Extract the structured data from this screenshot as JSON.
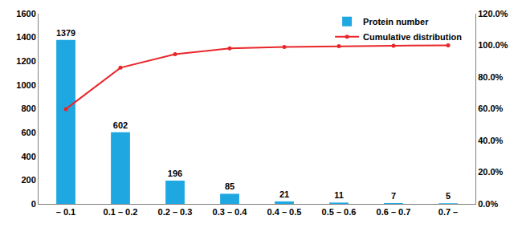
{
  "chart_data": {
    "type": "bar",
    "categories": [
      "– 0.1",
      "0.1 – 0.2",
      "0.2 – 0.3",
      "0.3 – 0.4",
      "0.4 – 0.5",
      "0.5 – 0.6",
      "0.6 – 0.7",
      "0.7 –"
    ],
    "series": [
      {
        "name": "Protein number",
        "type": "bar",
        "color": "#1fa7e2",
        "data_labels": true,
        "values": [
          1379,
          602,
          196,
          85,
          21,
          11,
          7,
          5
        ]
      },
      {
        "name": "Cumulative distribution",
        "type": "line",
        "axis": "y2",
        "color": "#e8262a",
        "marker": "circle",
        "line_style": "solid",
        "values": [
          59.8,
          85.9,
          94.4,
          98.1,
          99.0,
          99.5,
          99.8,
          100.0
        ]
      }
    ],
    "ylim": [
      0,
      1600
    ],
    "yticks": [
      0,
      200,
      400,
      600,
      800,
      1000,
      1200,
      1400,
      1600
    ],
    "y2lim": [
      0,
      120
    ],
    "y2ticks": [
      {
        "value": 0,
        "label": "0.0%"
      },
      {
        "value": 20,
        "label": "20.0%"
      },
      {
        "value": 40,
        "label": "40.0%"
      },
      {
        "value": 60,
        "label": "60.0%"
      },
      {
        "value": 80,
        "label": "80.0%"
      },
      {
        "value": 100,
        "label": "100.0%"
      },
      {
        "value": 120,
        "label": "120.0%"
      }
    ],
    "grid": false,
    "legend": "top right"
  }
}
